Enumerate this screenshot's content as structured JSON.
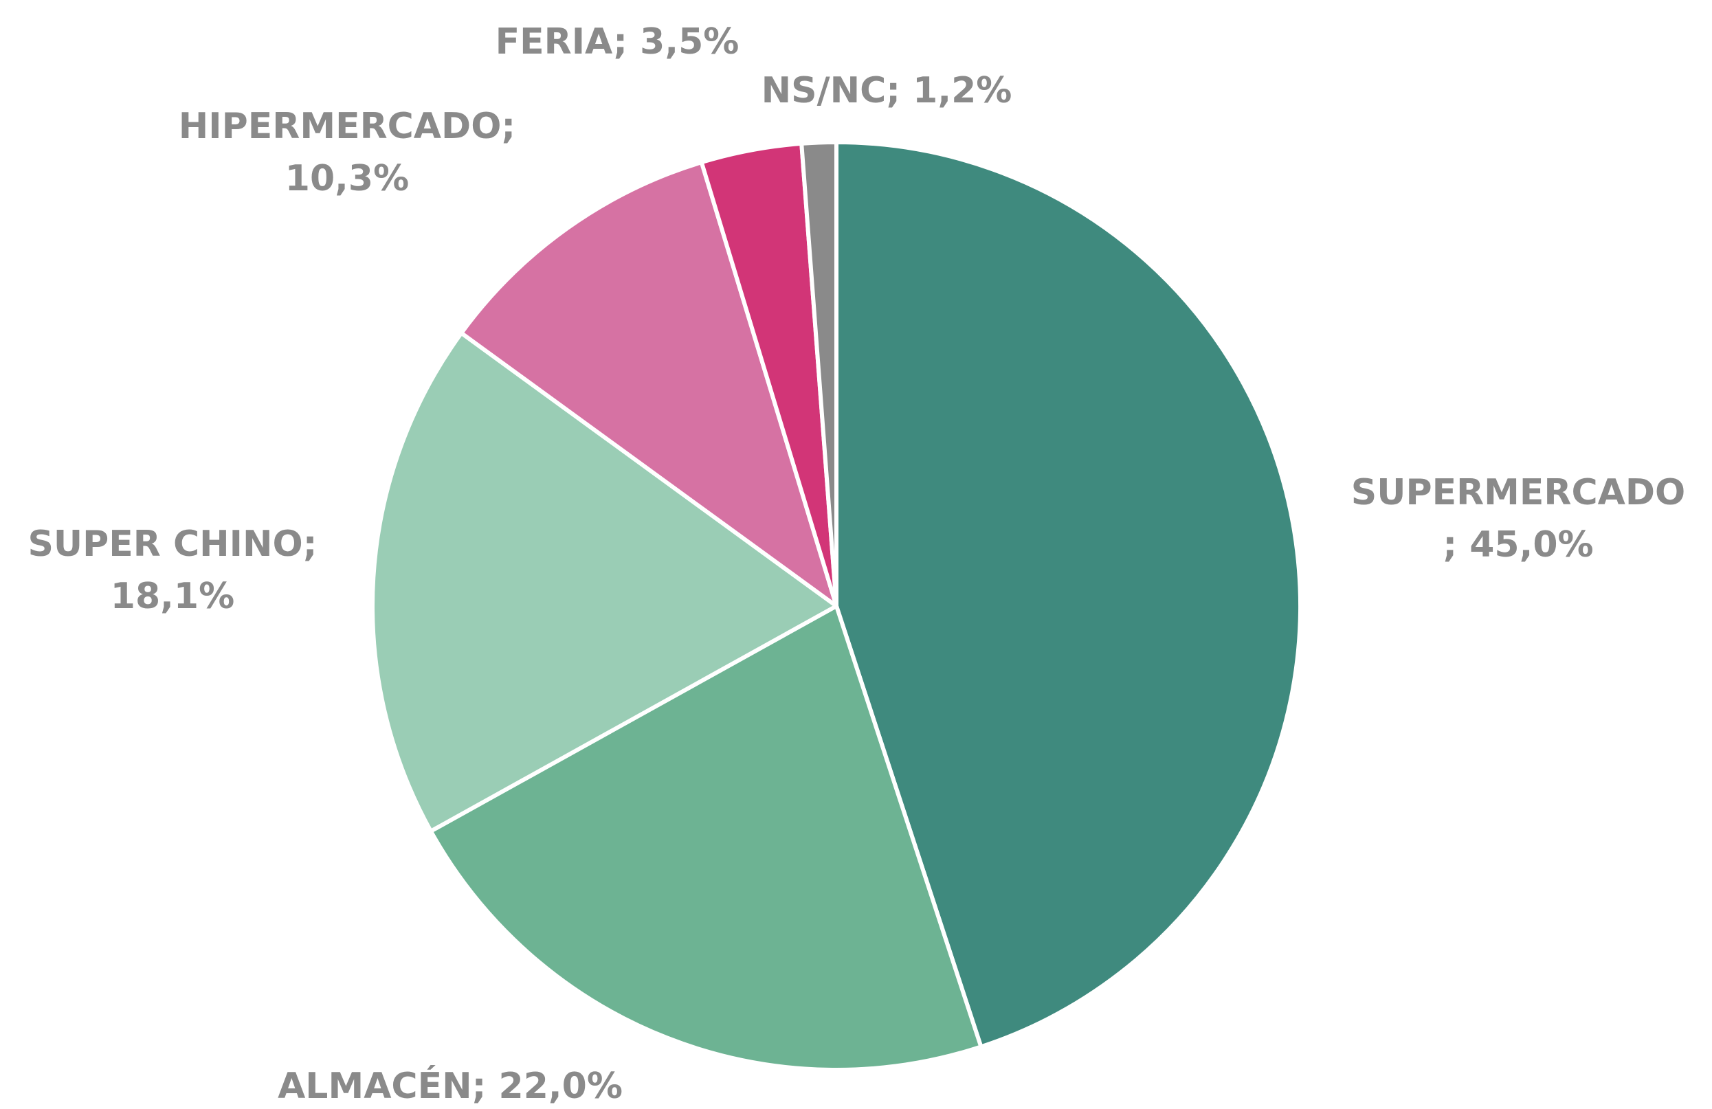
{
  "chart_data": {
    "type": "pie",
    "values": [
      45.0,
      22.0,
      18.1,
      10.3,
      3.5,
      1.2
    ],
    "labels": [
      [
        "SUPERMERCADO",
        "; 45,0%"
      ],
      [
        "ALMACÉN; 22,0%"
      ],
      [
        "SUPER CHINO;",
        "18,1%"
      ],
      [
        "HIPERMERCADO;",
        "10,3%"
      ],
      [
        "FERIA; 3,5%"
      ],
      [
        "NS/NC; 1,2%"
      ]
    ],
    "colors": [
      "#3f8a7e",
      "#6db393",
      "#9acdb5",
      "#d672a3",
      "#d23577",
      "#8a8a8a"
    ]
  }
}
